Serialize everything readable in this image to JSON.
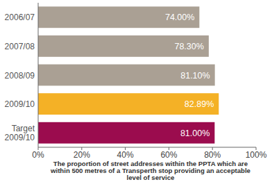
{
  "chart_data": {
    "type": "bar",
    "orientation": "horizontal",
    "categories": [
      "2006/07",
      "2007/08",
      "2008/09",
      "2009/10",
      "Target 2009/10"
    ],
    "values": [
      74,
      78.3,
      81.1,
      82.89,
      81
    ],
    "value_labels": [
      "74.00%",
      "78.30%",
      "81.10%",
      "82.89%",
      "81.00%"
    ],
    "colors": [
      "#aaa094",
      "#aaa094",
      "#aaa094",
      "#f4b126",
      "#9b0c4e"
    ],
    "xlabel": "The proportion of street addresses within the PPTA which are within 500 metres of a Transperth stop providing an acceptable level of service",
    "xlim": [
      0,
      100
    ],
    "xticks": [
      {
        "value": 0,
        "label": "0%"
      },
      {
        "value": 20,
        "label": "20%"
      },
      {
        "value": 40,
        "label": "40%"
      },
      {
        "value": 60,
        "label": "60%"
      },
      {
        "value": 80,
        "label": "80%"
      },
      {
        "value": 100,
        "label": "100%"
      }
    ],
    "grid": false,
    "data_labels": true
  }
}
